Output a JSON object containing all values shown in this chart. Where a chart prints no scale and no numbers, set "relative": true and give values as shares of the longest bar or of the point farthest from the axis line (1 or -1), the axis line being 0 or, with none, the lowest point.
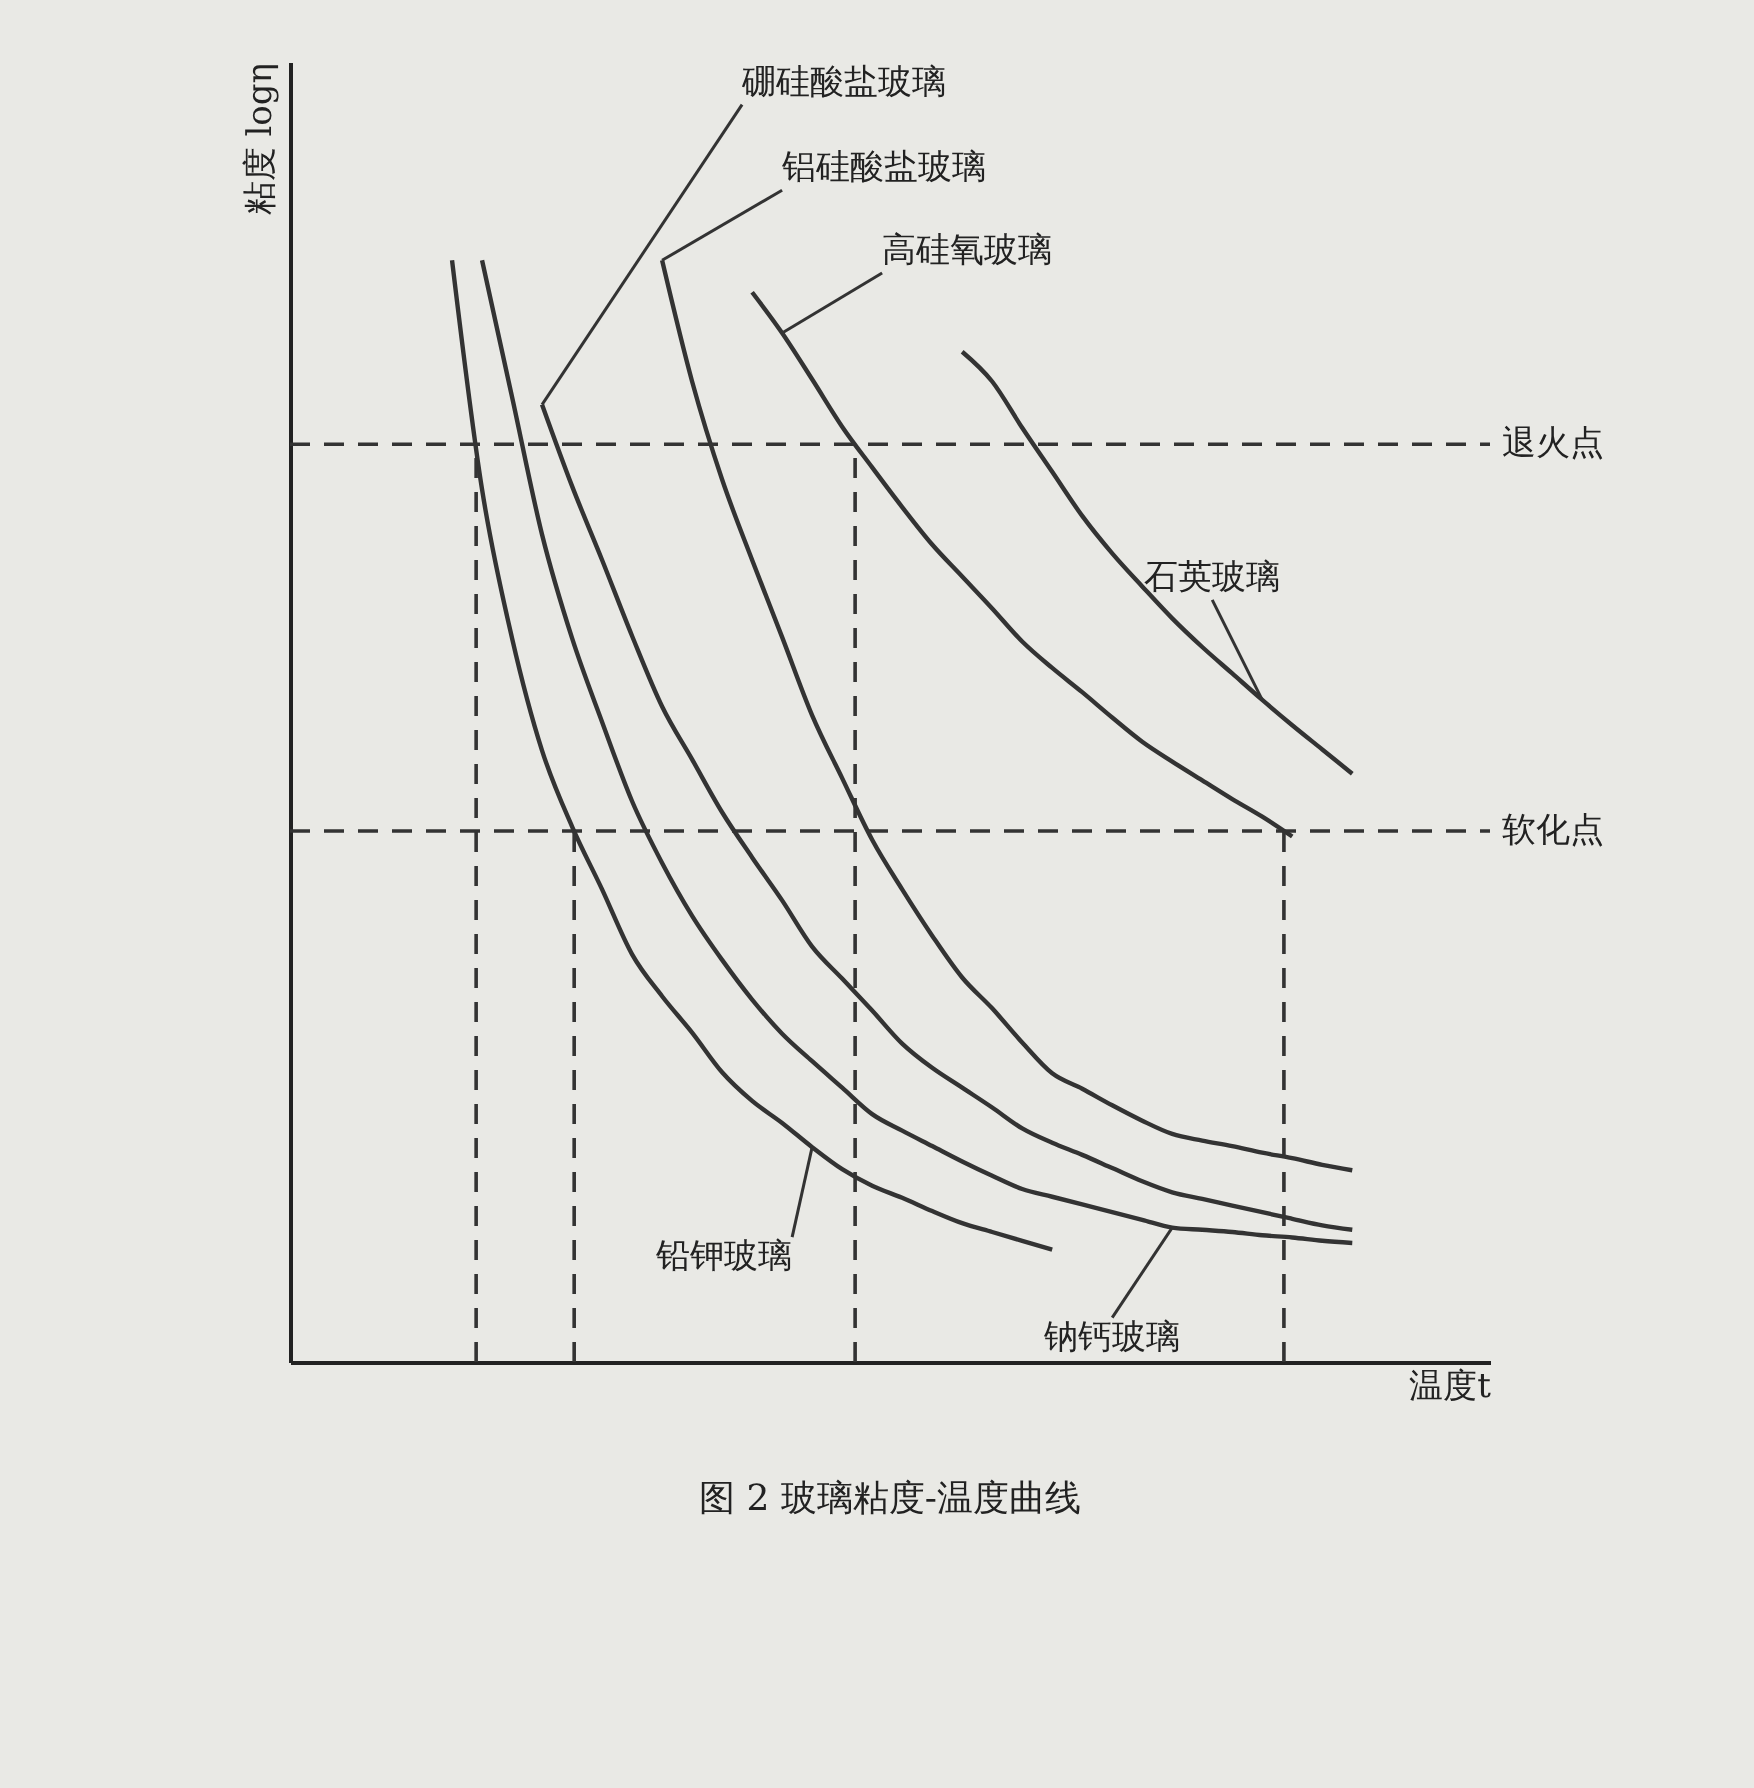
{
  "chart_data": {
    "type": "line",
    "title": "图 2  玻璃粘度-温度曲线",
    "xlabel": "温度t",
    "ylabel": "粘度 logη",
    "relative": true,
    "grid": false,
    "legend": false,
    "marker": "none",
    "line_style": "solid",
    "categories": [
      null,
      null,
      null,
      null,
      null,
      null,
      null,
      null,
      null,
      null,
      null,
      null,
      null,
      null,
      null,
      null,
      null,
      null,
      null,
      null,
      null,
      null,
      null,
      null,
      null,
      null,
      null,
      null,
      null,
      null,
      null
    ],
    "series": [
      {
        "name": "铅钾玻璃",
        "color": "#333333",
        "values": [
          1.0,
          0.792,
          0.657,
          0.555,
          0.486,
          0.429,
          0.37,
          0.332,
          0.299,
          0.263,
          0.237,
          0.217,
          0.195,
          0.175,
          0.16,
          0.149,
          0.137,
          0.126,
          0.118,
          0.11,
          0.102,
          null,
          null,
          null,
          null,
          null,
          null,
          null,
          null,
          null,
          null
        ]
      },
      {
        "name": "钠钙玻璃",
        "color": "#333333",
        "values": [
          null,
          1.0,
          0.876,
          0.751,
          0.657,
          0.581,
          0.509,
          0.453,
          0.405,
          0.365,
          0.329,
          0.298,
          0.273,
          0.249,
          0.225,
          0.21,
          0.196,
          0.182,
          0.169,
          0.157,
          0.15,
          0.143,
          0.136,
          0.129,
          0.122,
          0.12,
          0.118,
          0.115,
          0.113,
          0.11,
          0.108
        ]
      },
      {
        "name": "硼硅酸盐玻璃",
        "color": "#333333",
        "values": [
          null,
          null,
          null,
          0.869,
          0.795,
          0.728,
          0.659,
          0.595,
          0.547,
          0.499,
          0.458,
          0.419,
          0.377,
          0.348,
          0.319,
          0.289,
          0.267,
          0.249,
          0.231,
          0.212,
          0.199,
          0.188,
          0.176,
          0.164,
          0.154,
          0.148,
          0.142,
          0.136,
          0.13,
          0.124,
          0.12
        ]
      },
      {
        "name": "铝硅酸盐玻璃",
        "color": "#333333",
        "values": [
          null,
          null,
          null,
          null,
          null,
          null,
          null,
          1.0,
          0.89,
          0.801,
          0.728,
          0.658,
          0.587,
          0.53,
          0.474,
          0.429,
          0.387,
          0.349,
          0.321,
          0.29,
          0.262,
          0.248,
          0.233,
          0.219,
          0.207,
          0.201,
          0.196,
          0.19,
          0.185,
          0.179,
          0.174
        ]
      },
      {
        "name": "高硅氧玻璃",
        "color": "#333333",
        "values": [
          null,
          null,
          null,
          null,
          null,
          null,
          null,
          null,
          null,
          null,
          0.971,
          0.934,
          0.892,
          0.849,
          0.812,
          0.776,
          0.742,
          0.713,
          0.684,
          0.654,
          0.63,
          0.608,
          0.585,
          0.563,
          0.545,
          0.528,
          0.511,
          0.495,
          0.477,
          null,
          null
        ]
      },
      {
        "name": "石英玻璃",
        "color": "#333333",
        "values": [
          null,
          null,
          null,
          null,
          null,
          null,
          null,
          null,
          null,
          null,
          null,
          null,
          null,
          null,
          null,
          null,
          null,
          0.917,
          0.89,
          0.848,
          0.808,
          0.768,
          0.734,
          0.704,
          0.675,
          0.649,
          0.625,
          0.601,
          0.578,
          0.556,
          0.534
        ]
      }
    ],
    "ref_lines": [
      {
        "axis": "y",
        "value": 0.833,
        "label": "退火点",
        "line_style": "dashed"
      },
      {
        "axis": "y",
        "value": 0.482,
        "label": "软化点",
        "line_style": "dashed"
      }
    ]
  }
}
